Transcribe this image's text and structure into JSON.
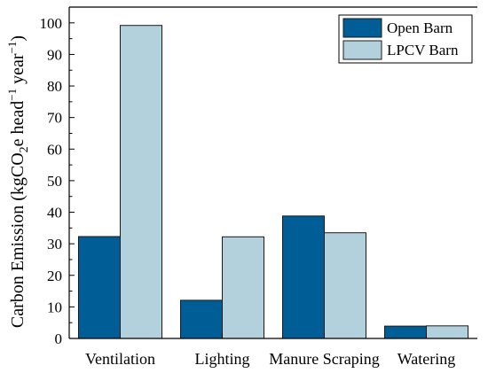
{
  "colors": {
    "open_barn": "#005d96",
    "lpcv_barn": "#b3d1dd",
    "bar_edge": "#1a1a1a",
    "axis": "#000000"
  },
  "chart_data": {
    "type": "bar",
    "title": "",
    "xlabel": "",
    "ylabel": {
      "prefix": "Carbon Emission (kgCO",
      "sub": "2",
      "mid": "e head",
      "sup": "−1",
      "end": " year",
      "sup2": "−1",
      "close": ")"
    },
    "categories": [
      "Ventilation",
      "Lighting",
      "Manure Scraping",
      "Watering"
    ],
    "series": [
      {
        "name": "Open Barn",
        "color_key": "open_barn",
        "values": [
          32.3,
          12.1,
          38.8,
          3.9
        ]
      },
      {
        "name": "LPCV Barn",
        "color_key": "lpcv_barn",
        "values": [
          99.2,
          32.2,
          33.5,
          4.0
        ]
      }
    ],
    "ylim": [
      0,
      105
    ],
    "yticks": [
      0,
      10,
      20,
      30,
      40,
      50,
      60,
      70,
      80,
      90,
      100
    ],
    "grid": false,
    "legend_position": "top-right"
  }
}
